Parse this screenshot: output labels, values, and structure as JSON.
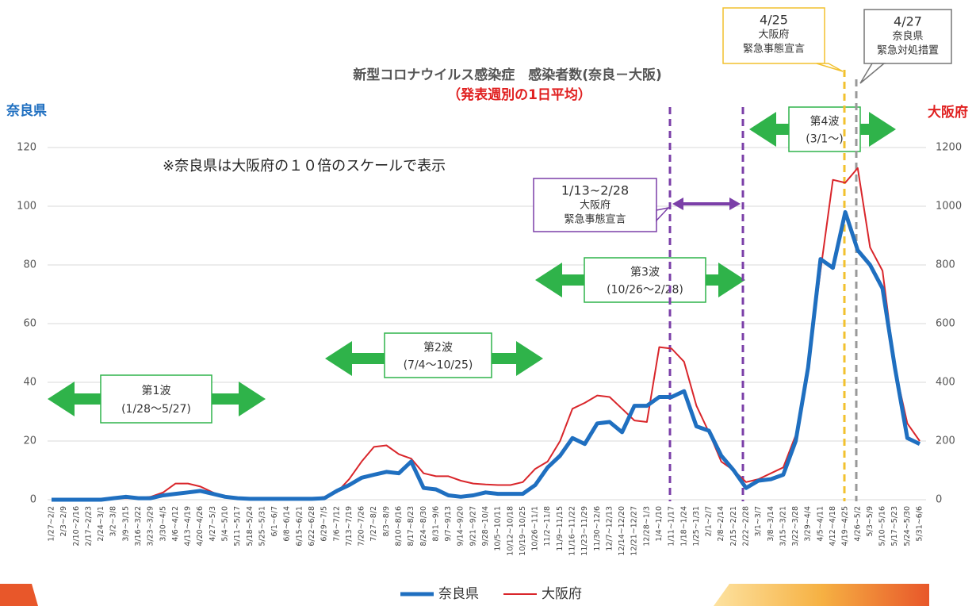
{
  "chart_data": {
    "type": "line",
    "title": "新型コロナウイルス感染症　感染者数(奈良－大阪)",
    "subtitle": "（発表週別の1日平均）",
    "y_label": "奈良県",
    "y2_label": "大阪府",
    "note": "※奈良県は大阪府の１０倍のスケールで表示",
    "waves": [
      {
        "name": "第1波",
        "period": "(1/28～5/27)"
      },
      {
        "name": "第2波",
        "period": "(7/4～10/25)"
      },
      {
        "name": "第3波",
        "period": "(10/26～2/28)"
      },
      {
        "name": "第4波",
        "period": "(3/1～)"
      }
    ],
    "callouts": [
      {
        "lines": [
          "1/13~2/28",
          "大阪府",
          "緊急事態宣言"
        ]
      },
      {
        "lines": [
          "4/25",
          "大阪府",
          "緊急事態宣言"
        ]
      },
      {
        "lines": [
          "4/27",
          "奈良県",
          "緊急対処措置"
        ]
      }
    ],
    "categories": [
      "1/27~2/2",
      "2/3~2/9",
      "2/10~2/16",
      "2/17~2/23",
      "2/24~3/1",
      "3/2~3/8",
      "3/9~3/15",
      "3/16~3/22",
      "3/23~3/29",
      "3/30~4/5",
      "4/6~4/12",
      "4/13~4/19",
      "4/20~4/26",
      "4/27~5/3",
      "5/4~5/10",
      "5/11~5/17",
      "5/18~5/24",
      "5/25~5/31",
      "6/1~6/7",
      "6/8~6/14",
      "6/15~6/21",
      "6/22~6/28",
      "6/29~7/5",
      "7/6~7/12",
      "7/13~7/19",
      "7/20~7/26",
      "7/27~8/2",
      "8/3~8/9",
      "8/10~8/16",
      "8/17~8/23",
      "8/24~8/30",
      "8/31~9/6",
      "9/7~9/13",
      "9/14~9/20",
      "9/21~9/27",
      "9/28~10/4",
      "10/5~10/11",
      "10/12~10/18",
      "10/19~10/25",
      "10/26~11/1",
      "11/2~11/8",
      "11/9~11/15",
      "11/16~11/22",
      "11/23~11/29",
      "11/30~12/6",
      "12/7~12/13",
      "12/14~12/20",
      "12/21~12/27",
      "12/28~1/3",
      "1/4~1/10",
      "1/11~1/17",
      "1/18~1/24",
      "1/25~1/31",
      "2/1~2/7",
      "2/8~2/14",
      "2/15~2/21",
      "2/22~2/28",
      "3/1~3/7",
      "3/8~3/14",
      "3/15~3/21",
      "3/22~3/28",
      "3/29~4/4",
      "4/5~4/11",
      "4/12~4/18",
      "4/19~4/25",
      "4/26~5/2",
      "5/3~5/9",
      "5/10~5/16",
      "5/17~5/23",
      "5/24~5/30",
      "5/31~6/6"
    ],
    "series": [
      {
        "name": "奈良県",
        "color": "#1f6fc0",
        "values": [
          0,
          0,
          0,
          0,
          0,
          0.5,
          1,
          0.5,
          0.5,
          1.5,
          2,
          2.5,
          3,
          2,
          1,
          0.5,
          0.3,
          0.3,
          0.3,
          0.3,
          0.3,
          0.3,
          0.5,
          3,
          5,
          7.5,
          8.5,
          9.5,
          9,
          13,
          4,
          3.5,
          1.5,
          1,
          1.5,
          2.5,
          2,
          2,
          2,
          5,
          11,
          15,
          21,
          19,
          26,
          26.5,
          23,
          32,
          32,
          35,
          35,
          37,
          25,
          23.5,
          15,
          10,
          4,
          6.5,
          7,
          8.5,
          20,
          45,
          82,
          79,
          98,
          85,
          80,
          72,
          45,
          21,
          19
        ]
      },
      {
        "name": "大阪府",
        "color": "#d9262b",
        "axis": "y2",
        "values": [
          0,
          0,
          0,
          0,
          2,
          5,
          5,
          5,
          10,
          25,
          55,
          55,
          45,
          25,
          8,
          3,
          3,
          3,
          3,
          3,
          3,
          3,
          10,
          25,
          70,
          130,
          180,
          185,
          155,
          140,
          90,
          80,
          80,
          65,
          55,
          52,
          50,
          50,
          60,
          105,
          130,
          200,
          310,
          330,
          355,
          350,
          310,
          270,
          265,
          520,
          515,
          470,
          320,
          230,
          130,
          100,
          60,
          70,
          90,
          110,
          220,
          450,
          780,
          1090,
          1080,
          1130,
          860,
          780,
          450,
          260,
          200
        ]
      }
    ],
    "ylim": [
      0,
      120
    ],
    "yticks": [
      0,
      20,
      40,
      60,
      80,
      100,
      120
    ],
    "y2lim": [
      0,
      1200
    ],
    "y2ticks": [
      0,
      200,
      400,
      600,
      800,
      1000,
      1200
    ],
    "grid": true
  }
}
